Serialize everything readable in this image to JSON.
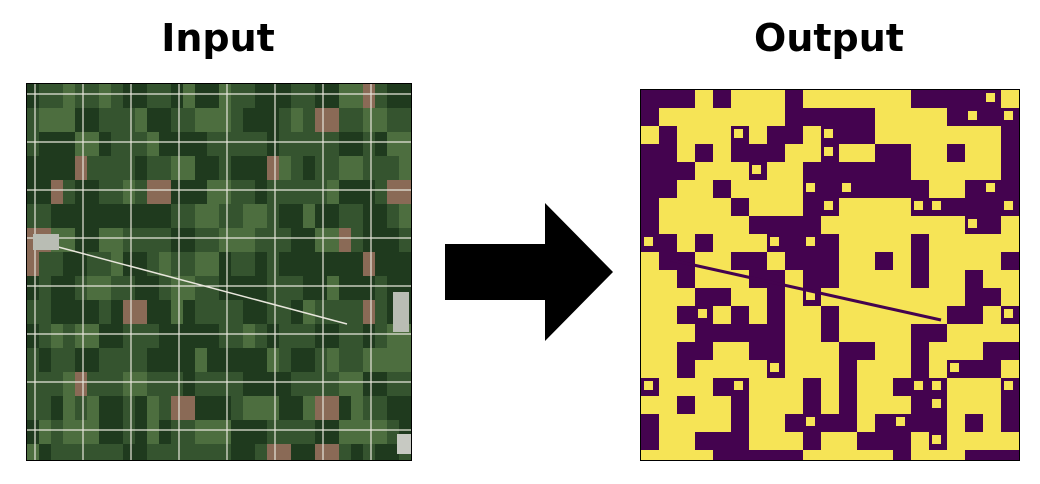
{
  "labels": {
    "input_title": "Input",
    "output_title": "Output"
  },
  "colors": {
    "background": "#ffffff",
    "arrow": "#000000",
    "mask_class_0": "#44034f",
    "mask_class_1": "#f6e456",
    "field_dark": "#1f3a1e",
    "field_mid": "#35542f",
    "field_light": "#4d6e3f",
    "field_bare": "#8a6a56",
    "road": "#e8e6dc"
  }
}
